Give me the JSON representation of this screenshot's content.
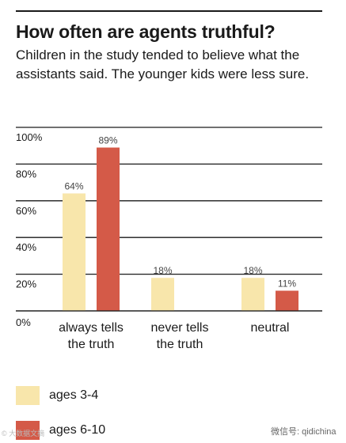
{
  "header": {
    "title": "How often are agents truthful?",
    "subtitle": "Children in the study tended to believe what the assistants said. The younger kids were less sure."
  },
  "chart_data": {
    "type": "bar",
    "categories": [
      [
        "always tells",
        "the truth"
      ],
      [
        "never tells",
        "the truth"
      ],
      [
        "neutral"
      ]
    ],
    "series": [
      {
        "name": "ages 3-4",
        "color": "#f8e6ab",
        "values": [
          64,
          18,
          18
        ],
        "labels": [
          "64%",
          "18%",
          "18%"
        ]
      },
      {
        "name": "ages 6-10",
        "color": "#d45a48",
        "values": [
          89,
          null,
          11
        ],
        "labels": [
          "89%",
          "",
          "11%"
        ]
      }
    ],
    "yticks": [
      0,
      20,
      40,
      60,
      80,
      100
    ],
    "ytick_labels": [
      "0%",
      "20%",
      "40%",
      "60%",
      "80%",
      "100%"
    ],
    "ylim": [
      0,
      100
    ],
    "grid": true,
    "legend_position": "bottom-left",
    "title": "How often are agents truthful?",
    "xlabel": "",
    "ylabel": ""
  },
  "legend": [
    {
      "label": "ages 3-4",
      "color": "#f8e6ab"
    },
    {
      "label": "ages 6-10",
      "color": "#d45a48"
    }
  ],
  "watermarks": {
    "left": "© 大数据文摘",
    "right": "微信号: qidichina"
  }
}
